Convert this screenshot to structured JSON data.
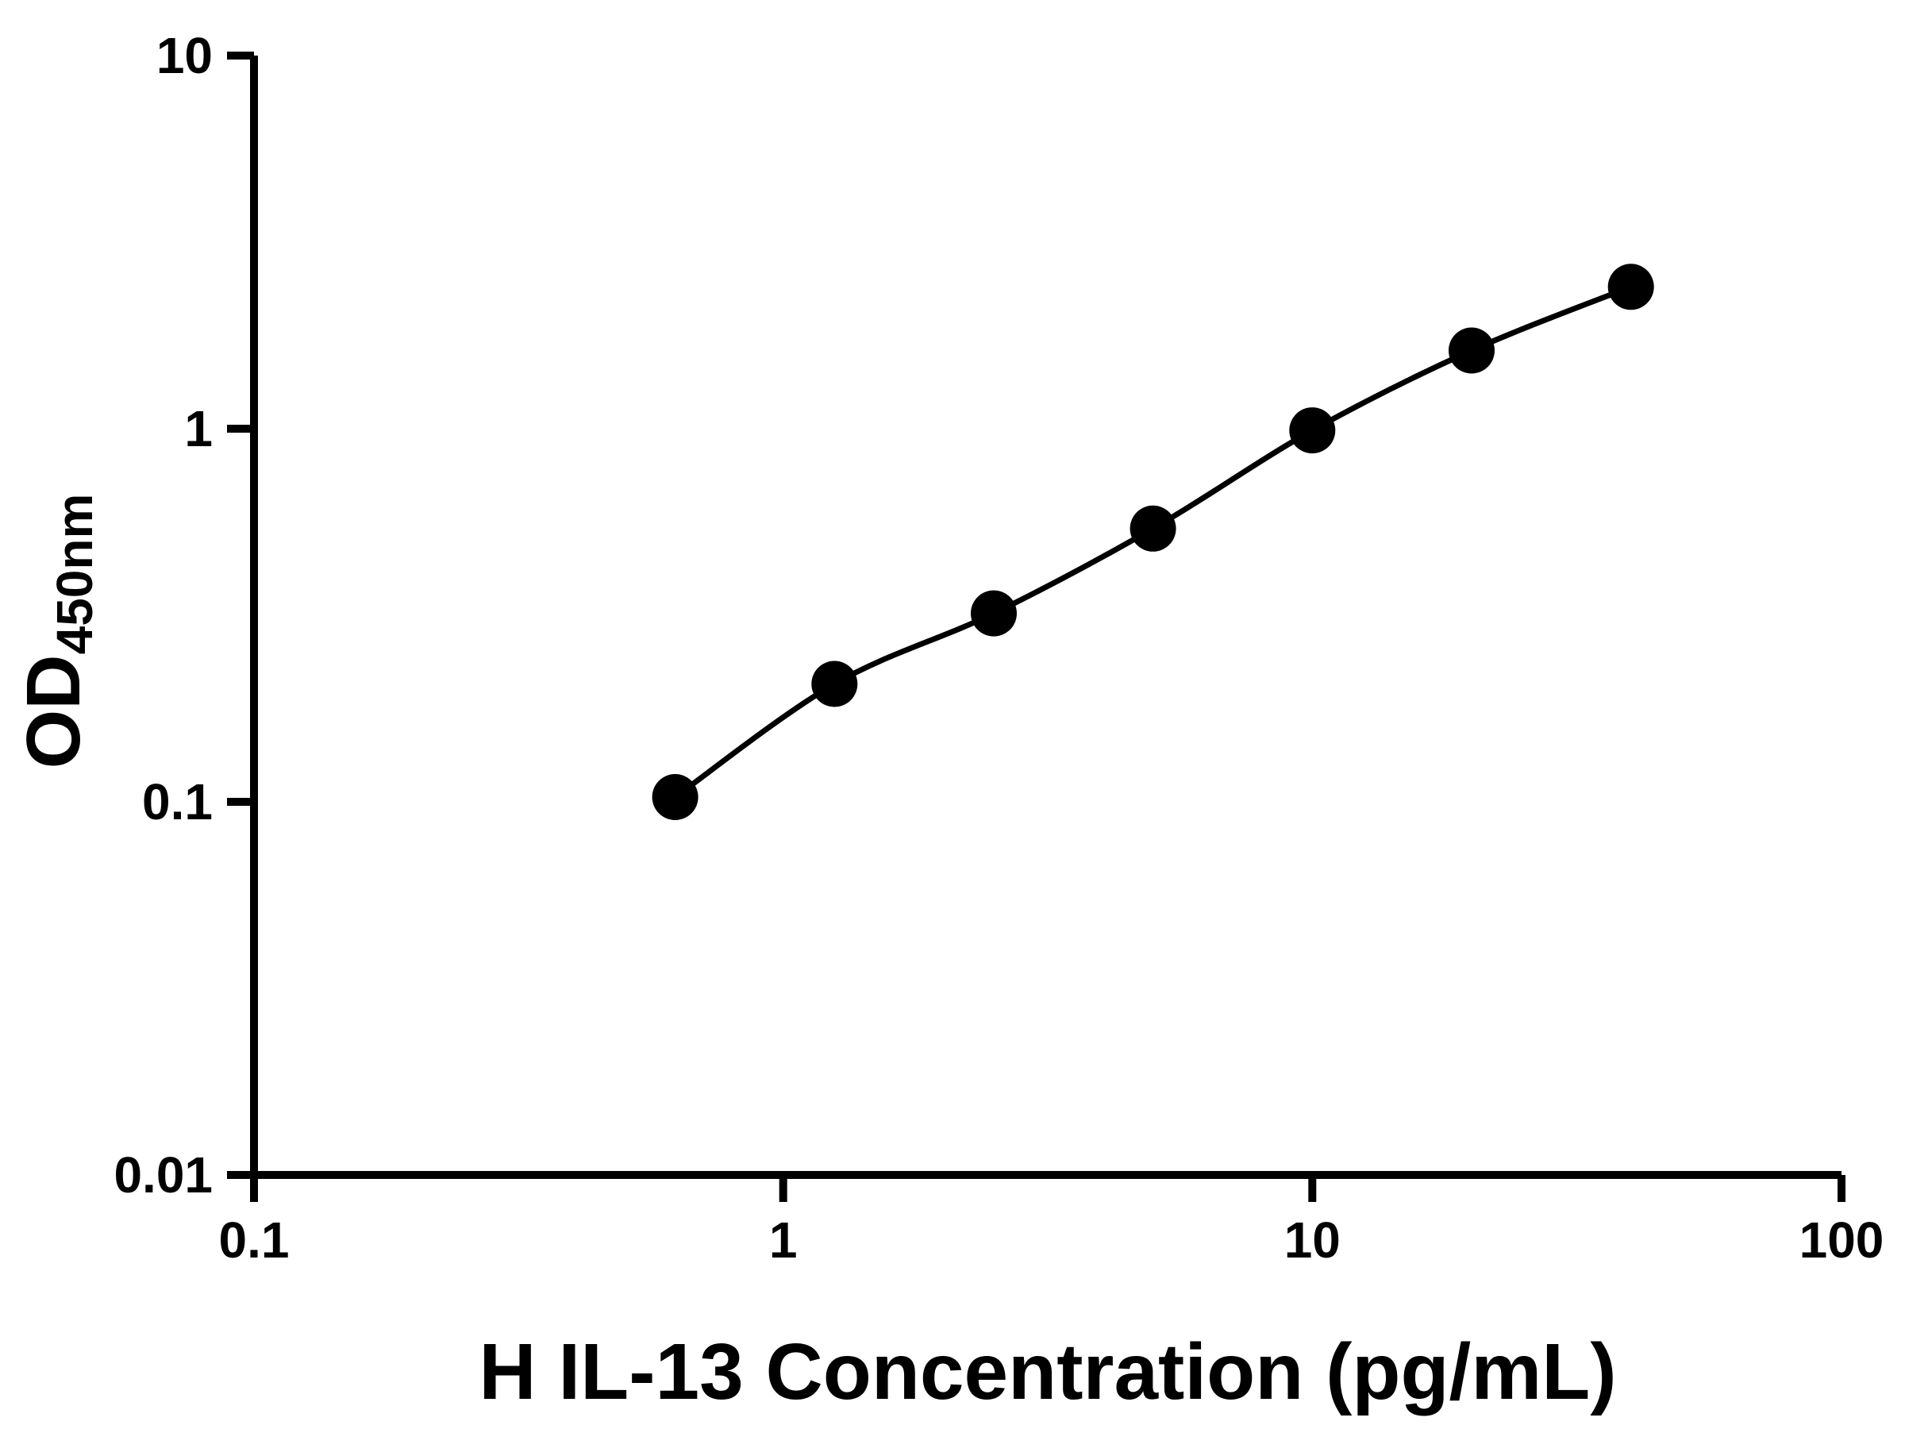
{
  "chart_data": {
    "type": "scatter",
    "title": "",
    "xlabel": "H IL-13 Concentration (pg/mL)",
    "ylabel": {
      "main": "OD",
      "sub": "450nm"
    },
    "x_scale": "log",
    "y_scale": "log",
    "xlim": [
      0.1,
      100
    ],
    "ylim": [
      0.01,
      10
    ],
    "grid": false,
    "legend": "none",
    "background": "#ffffff",
    "axis_color": "#000000",
    "x_ticks": [
      {
        "value": 0.1,
        "label": "0.1"
      },
      {
        "value": 1,
        "label": "1"
      },
      {
        "value": 10,
        "label": "10"
      },
      {
        "value": 100,
        "label": "100"
      }
    ],
    "y_ticks": [
      {
        "value": 0.01,
        "label": "0.01"
      },
      {
        "value": 0.1,
        "label": "0.1"
      },
      {
        "value": 1,
        "label": "1"
      },
      {
        "value": 10,
        "label": "10"
      }
    ],
    "series": [
      {
        "marker": "filled-circle",
        "color": "#000000",
        "fit": "smooth-curve",
        "x": [
          0.625,
          1.25,
          2.5,
          5,
          10,
          20,
          40
        ],
        "y": [
          0.103,
          0.207,
          0.32,
          0.54,
          0.99,
          1.62,
          2.4
        ]
      }
    ]
  }
}
